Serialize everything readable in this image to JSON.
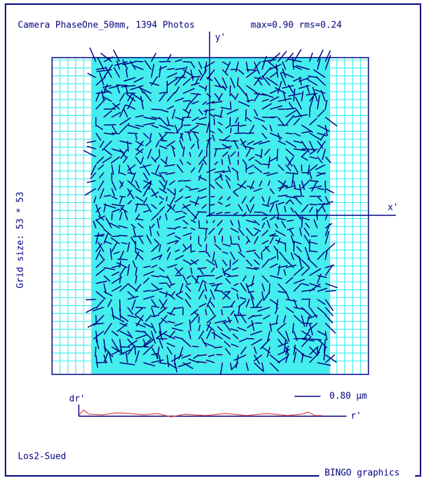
{
  "header": {
    "title": "Camera PhaseOne_50mm, 1394 Photos",
    "stats": "max=0.90 rms=0.24"
  },
  "axes": {
    "y_label": "y'",
    "x_label": "x'"
  },
  "grid_size": "Grid size: 53 * 53",
  "profile": {
    "y_label": "dr'",
    "x_label": "r'"
  },
  "scale": "0.80 µm",
  "site": "Los2-Sued",
  "footer": "BINGO graphics"
}
